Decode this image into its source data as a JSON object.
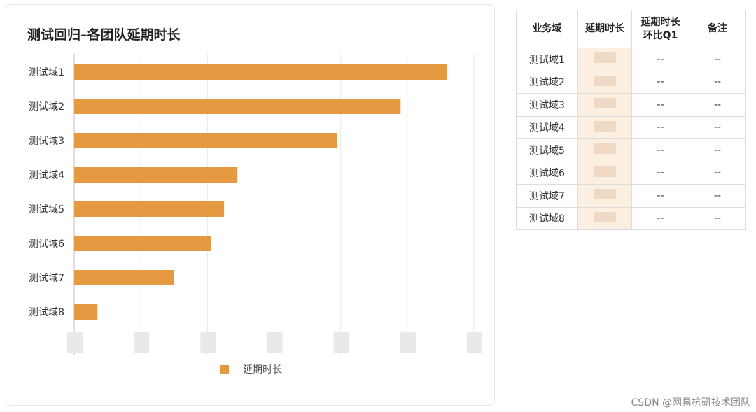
{
  "chart_data": {
    "type": "bar",
    "orientation": "horizontal",
    "title": "测试回归–各团队延期时长",
    "categories": [
      "测试域1",
      "测试域2",
      "测试域3",
      "测试域4",
      "测试域5",
      "测试域6",
      "测试域7",
      "测试域8"
    ],
    "series": [
      {
        "name": "延期时长",
        "values": [
          5.6,
          4.9,
          3.95,
          2.45,
          2.25,
          2.05,
          1.5,
          0.35
        ],
        "color": "#E59A41"
      }
    ],
    "xlim": [
      0,
      6
    ],
    "grid": true,
    "legend": "bottom",
    "tick_labels_obscured": true
  },
  "table": {
    "headers": [
      "业务域",
      "延期时长",
      "延期时长\n环比Q1",
      "备注"
    ],
    "rows": [
      [
        "测试域1",
        "",
        "--",
        "--"
      ],
      [
        "测试域2",
        "",
        "--",
        "--"
      ],
      [
        "测试域3",
        "",
        "--",
        "--"
      ],
      [
        "测试域4",
        "",
        "--",
        "--"
      ],
      [
        "测试域5",
        "",
        "--",
        "--"
      ],
      [
        "测试域6",
        "",
        "--",
        "--"
      ],
      [
        "测试域7",
        "",
        "--",
        "--"
      ],
      [
        "测试域8",
        "",
        "--",
        "--"
      ]
    ],
    "obscured_column": 1
  },
  "footer": "CSDN @网易杭研技术团队"
}
